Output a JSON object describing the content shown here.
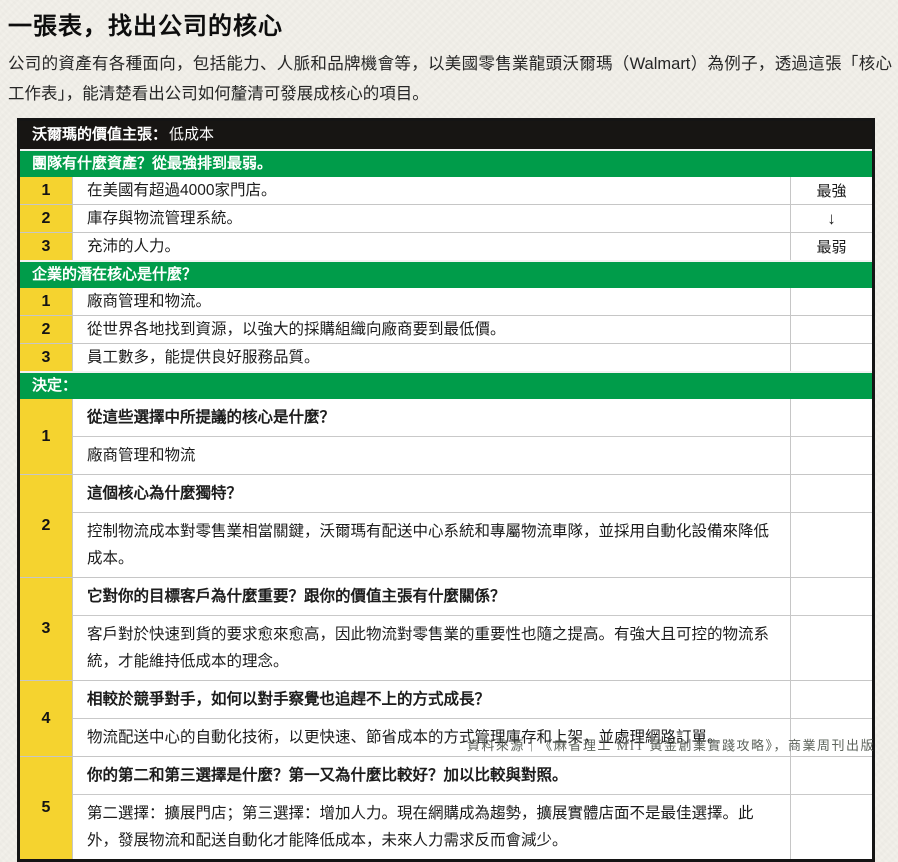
{
  "page": {
    "title": "一張表，找出公司的核心",
    "intro": "公司的資產有各種面向，包括能力、人脈和品牌機會等，以美國零售業龍頭沃爾瑪（Walmart）為例子，透過這張「核心工作表」，能清楚看出公司如何釐清可發展成核心的項目。",
    "source": "資料來源｜《麻省理工 MIT 黃金創業實踐攻略》，商業周刊出版"
  },
  "colors": {
    "green_bar": "#009c4a",
    "yellow_number": "#f5d32f",
    "black_bar": "#171513"
  },
  "table": {
    "value_proposition": {
      "label": "沃爾瑪的價值主張：",
      "value": "低成本"
    },
    "sections": [
      {
        "heading": "團隊有什麼資產？從最強排到最弱。",
        "rows": [
          {
            "num": "1",
            "text": "在美國有超過4000家門店。",
            "note": "最強"
          },
          {
            "num": "2",
            "text": "庫存與物流管理系統。",
            "note": "↓"
          },
          {
            "num": "3",
            "text": "充沛的人力。",
            "note": "最弱"
          }
        ]
      },
      {
        "heading": "企業的潛在核心是什麼？",
        "rows": [
          {
            "num": "1",
            "text": "廠商管理和物流。",
            "note": ""
          },
          {
            "num": "2",
            "text": "從世界各地找到資源，以強大的採購組織向廠商要到最低價。",
            "note": ""
          },
          {
            "num": "3",
            "text": "員工數多，能提供良好服務品質。",
            "note": ""
          }
        ]
      }
    ],
    "decision": {
      "heading": "決定：",
      "rows": [
        {
          "num": "1",
          "question": "從這些選擇中所提議的核心是什麼？",
          "answer": "廠商管理和物流"
        },
        {
          "num": "2",
          "question": "這個核心為什麼獨特？",
          "answer": "控制物流成本對零售業相當關鍵，沃爾瑪有配送中心系統和專屬物流車隊，並採用自動化設備來降低成本。"
        },
        {
          "num": "3",
          "question": "它對你的目標客戶為什麼重要？跟你的價值主張有什麼關係？",
          "answer": "客戶對於快速到貨的要求愈來愈高，因此物流對零售業的重要性也隨之提高。有強大且可控的物流系統，才能維持低成本的理念。"
        },
        {
          "num": "4",
          "question": "相較於競爭對手，如何以對手察覺也追趕不上的方式成長？",
          "answer": "物流配送中心的自動化技術，以更快速、節省成本的方式管理庫存和上架，並處理網路訂單。"
        },
        {
          "num": "5",
          "question": "你的第二和第三選擇是什麼？第一又為什麼比較好？加以比較與對照。",
          "answer": "第二選擇：擴展門店；第三選擇：增加人力。現在網購成為趨勢，擴展實體店面不是最佳選擇。此外，發展物流和配送自動化才能降低成本，未來人力需求反而會減少。"
        }
      ]
    }
  }
}
